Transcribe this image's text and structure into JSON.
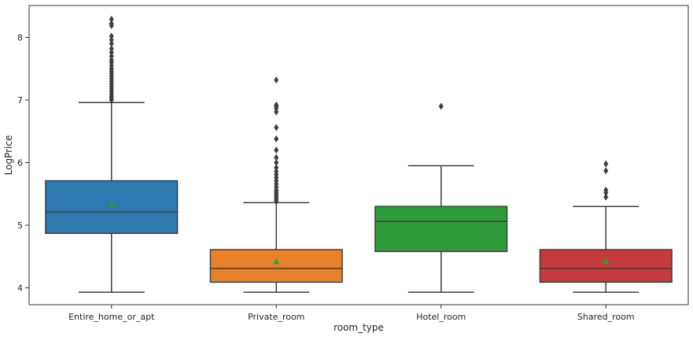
{
  "chart_data": {
    "type": "box",
    "xlabel": "room_type",
    "ylabel": "LogPrice",
    "ylim": [
      3.73,
      8.51
    ],
    "yticks": [
      4,
      5,
      6,
      7,
      8
    ],
    "grid": false,
    "mean_marker_color": "#2ca02c",
    "categories": [
      "Entire_home_or_apt",
      "Private_room",
      "Hotel_room",
      "Shared_room"
    ],
    "boxes": [
      {
        "category": "Entire_home_or_apt",
        "color": "#2e79b0",
        "q1": 4.87,
        "median": 5.21,
        "q3": 5.71,
        "mean": 5.33,
        "whisker_low": 3.93,
        "whisker_high": 6.96,
        "outliers": [
          7.0,
          7.03,
          7.06,
          7.1,
          7.14,
          7.18,
          7.22,
          7.26,
          7.3,
          7.34,
          7.38,
          7.42,
          7.46,
          7.5,
          7.55,
          7.6,
          7.64,
          7.7,
          7.76,
          7.82,
          7.9,
          7.96,
          8.02,
          8.19,
          8.22,
          8.29
        ]
      },
      {
        "category": "Private_room",
        "color": "#e8822a",
        "q1": 4.09,
        "median": 4.31,
        "q3": 4.61,
        "mean": 4.42,
        "whisker_low": 3.93,
        "whisker_high": 5.36,
        "outliers": [
          5.38,
          5.41,
          5.44,
          5.47,
          5.5,
          5.53,
          5.56,
          5.61,
          5.66,
          5.71,
          5.76,
          5.81,
          5.86,
          5.92,
          6.0,
          6.08,
          6.2,
          6.38,
          6.56,
          6.81,
          6.87,
          6.9,
          6.92,
          7.32
        ]
      },
      {
        "category": "Hotel_room",
        "color": "#2f9c3a",
        "q1": 4.58,
        "median": 5.06,
        "q3": 5.3,
        "mean": null,
        "whisker_low": 3.93,
        "whisker_high": 5.95,
        "outliers": [
          6.9
        ]
      },
      {
        "category": "Shared_room",
        "color": "#c53a3d",
        "q1": 4.09,
        "median": 4.31,
        "q3": 4.61,
        "mean": 4.43,
        "whisker_low": 3.93,
        "whisker_high": 5.3,
        "outliers": [
          5.45,
          5.52,
          5.56,
          5.87,
          5.98
        ]
      }
    ]
  }
}
